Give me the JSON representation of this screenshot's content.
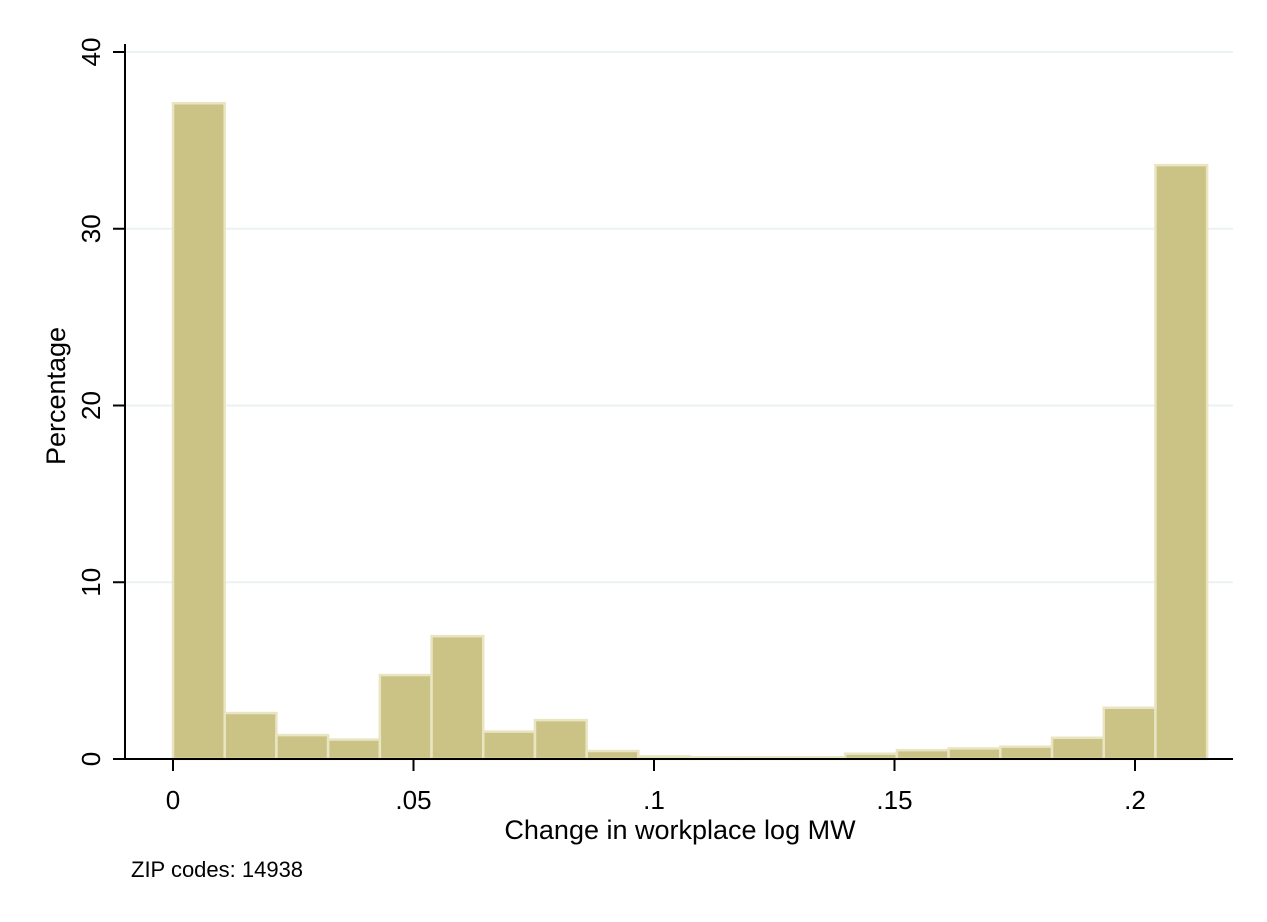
{
  "chart_data": {
    "type": "bar",
    "subtype": "histogram",
    "xlabel": "Change in workplace log MW",
    "ylabel": "Percentage",
    "xlim": [
      -0.012,
      0.2205
    ],
    "ylim": [
      0,
      40
    ],
    "xticks": [
      0,
      0.05,
      0.1,
      0.15,
      0.2
    ],
    "xtick_labels": [
      "0",
      ".05",
      ".1",
      ".15",
      ".2"
    ],
    "yticks": [
      0,
      10,
      20,
      30,
      40
    ],
    "ytick_labels": [
      "0",
      "10",
      "20",
      "30",
      "40"
    ],
    "grid": true,
    "bin_width": 0.01075,
    "bins": [
      {
        "start": 0.0,
        "value": 37.1
      },
      {
        "start": 0.01075,
        "value": 2.6
      },
      {
        "start": 0.0215,
        "value": 1.35
      },
      {
        "start": 0.03225,
        "value": 1.1
      },
      {
        "start": 0.043,
        "value": 4.75
      },
      {
        "start": 0.05375,
        "value": 6.95
      },
      {
        "start": 0.0645,
        "value": 1.55
      },
      {
        "start": 0.07525,
        "value": 2.2
      },
      {
        "start": 0.086,
        "value": 0.45
      },
      {
        "start": 0.09675,
        "value": 0.15
      },
      {
        "start": 0.1075,
        "value": 0.1
      },
      {
        "start": 0.11825,
        "value": 0.1
      },
      {
        "start": 0.129,
        "value": 0.1
      },
      {
        "start": 0.13975,
        "value": 0.3
      },
      {
        "start": 0.1505,
        "value": 0.5
      },
      {
        "start": 0.16125,
        "value": 0.6
      },
      {
        "start": 0.172,
        "value": 0.7
      },
      {
        "start": 0.18275,
        "value": 1.2
      },
      {
        "start": 0.1935,
        "value": 2.9
      },
      {
        "start": 0.20425,
        "value": 33.6
      }
    ],
    "colors": {
      "bar_fill": "#CBC385",
      "bar_stroke": "#E9E5C3",
      "grid": "#EAF2F3",
      "axis": "#000000"
    }
  },
  "footnote": "ZIP codes: 14938"
}
